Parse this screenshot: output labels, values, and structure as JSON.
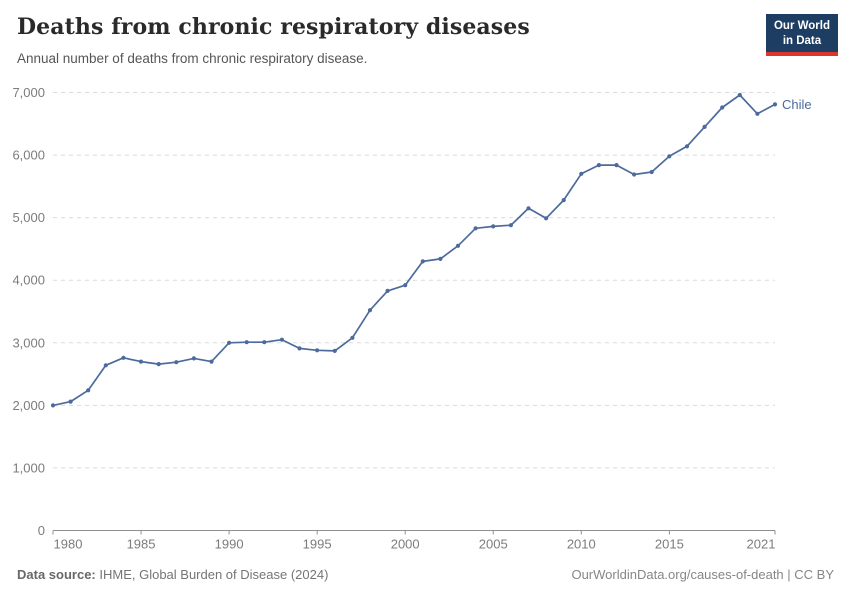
{
  "header": {
    "title": "Deaths from chronic respiratory diseases",
    "subtitle": "Annual number of deaths from chronic respiratory disease.",
    "logo": {
      "line1": "Our World",
      "line2": "in Data",
      "bg_color": "#1d3d63",
      "accent_color": "#dc352b"
    }
  },
  "chart_data": {
    "type": "line",
    "title": "Deaths from chronic respiratory diseases",
    "xlabel": "",
    "ylabel": "",
    "xlim": [
      1980,
      2021
    ],
    "ylim": [
      0,
      7000
    ],
    "grid": "horizontal-dashed",
    "legend_position": "end-of-line-label",
    "x_ticks": [
      1980,
      1985,
      1990,
      1995,
      2000,
      2005,
      2010,
      2015,
      2021
    ],
    "y_ticks": [
      0,
      1000,
      2000,
      3000,
      4000,
      5000,
      6000,
      7000
    ],
    "y_tick_labels": [
      "0",
      "1,000",
      "2,000",
      "3,000",
      "4,000",
      "5,000",
      "6,000",
      "7,000"
    ],
    "series": [
      {
        "name": "Chile",
        "color": "#4c6a9c",
        "x": [
          1980,
          1981,
          1982,
          1983,
          1984,
          1985,
          1986,
          1987,
          1988,
          1989,
          1990,
          1991,
          1992,
          1993,
          1994,
          1995,
          1996,
          1997,
          1998,
          1999,
          2000,
          2001,
          2002,
          2003,
          2004,
          2005,
          2006,
          2007,
          2008,
          2009,
          2010,
          2011,
          2012,
          2013,
          2014,
          2015,
          2016,
          2017,
          2018,
          2019,
          2020,
          2021
        ],
        "values": [
          2000,
          2060,
          2240,
          2640,
          2760,
          2700,
          2660,
          2690,
          2750,
          2700,
          3000,
          3010,
          3010,
          3050,
          2910,
          2880,
          2870,
          3080,
          3520,
          3830,
          3920,
          4300,
          4340,
          4550,
          4830,
          4860,
          4880,
          5150,
          4990,
          5280,
          5700,
          5840,
          5840,
          5690,
          5730,
          5980,
          6140,
          6450,
          6760,
          6960,
          6660,
          6810
        ]
      }
    ]
  },
  "footer": {
    "source_label": "Data source:",
    "source_text": " IHME, Global Burden of Disease (2024)",
    "attribution": "OurWorldinData.org/causes-of-death | CC BY"
  }
}
